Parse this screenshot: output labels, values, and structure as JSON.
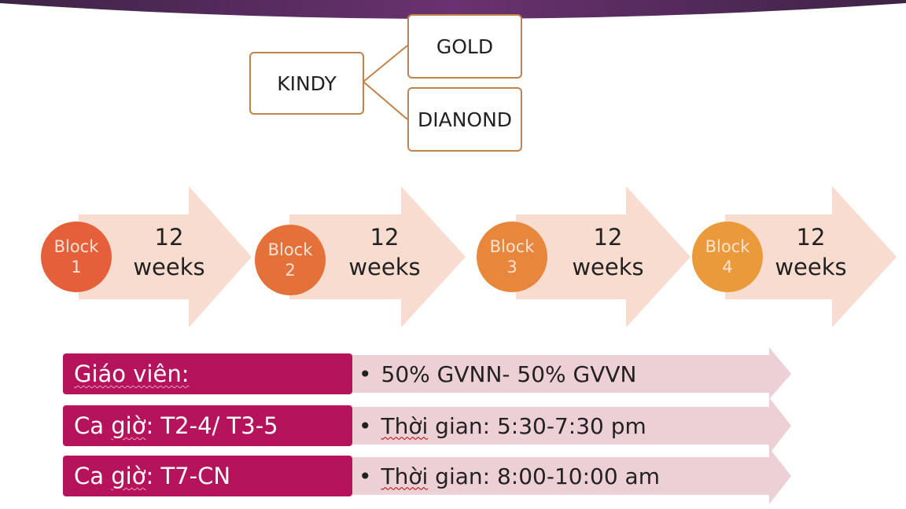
{
  "colors": {
    "header_purple": "#5a2c63",
    "box_border": "#c0834a",
    "arrow_fill": "#f8dccf",
    "block_circles": [
      "#e5603a",
      "#e4703a",
      "#e8863b",
      "#eb9a3b"
    ],
    "label_magenta": "#b5135c",
    "bullet_arrow_fill": "#ecd0d6"
  },
  "hierarchy": {
    "root": "KINDY",
    "children": [
      "GOLD",
      "DIANOND"
    ]
  },
  "blocks": [
    {
      "line1": "Block",
      "line2": "1",
      "weeks_num": "12",
      "weeks_word": "weeks"
    },
    {
      "line1": "Block",
      "line2": "2",
      "weeks_num": "12",
      "weeks_word": "weeks"
    },
    {
      "line1": "Block",
      "line2": "3",
      "weeks_num": "12",
      "weeks_word": "weeks"
    },
    {
      "line1": "Block",
      "line2": "4",
      "weeks_num": "12",
      "weeks_word": "weeks"
    }
  ],
  "info_rows": [
    {
      "label": "Giáo viên:",
      "bullet": "•",
      "value": "50% GVNN- 50% GVVN"
    },
    {
      "label_pre": "Ca ",
      "label_wavy": "giờ",
      "label_post": ": T2-4/ T3-5",
      "bullet": "•",
      "value_wavy": "Thời",
      "value_rest": " gian: 5:30-7:30 pm"
    },
    {
      "label_pre": "Ca ",
      "label_wavy": "giờ",
      "label_post": ": T7-CN",
      "bullet": "•",
      "value_wavy": "Thời",
      "value_rest": " gian: 8:00-10:00 am"
    }
  ]
}
